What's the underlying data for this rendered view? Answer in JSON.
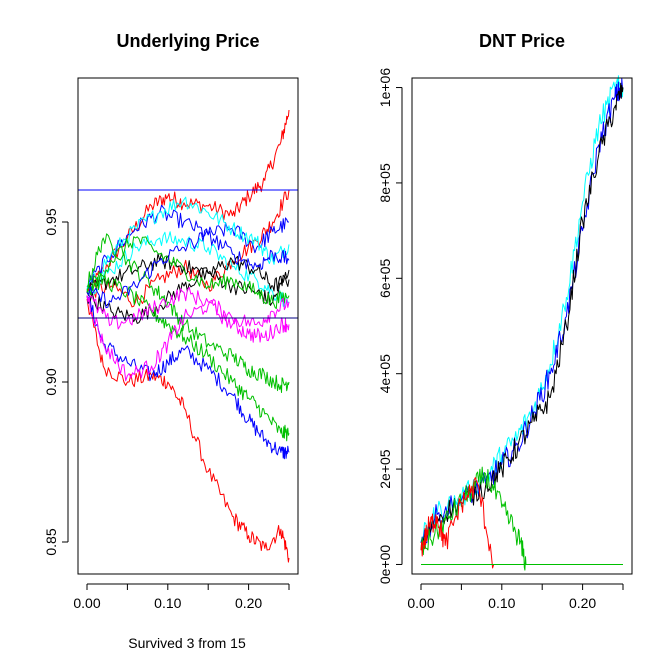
{
  "chart_data": [
    {
      "type": "line",
      "title": "Underlying Price",
      "xlabel": "Survived 3 from 15",
      "ylabel": "",
      "xlim": [
        0.0,
        0.25
      ],
      "ylim": [
        0.84,
        0.995
      ],
      "x_ticks": [
        0.0,
        0.1,
        0.2
      ],
      "x_tick_labels": [
        "0.00",
        "0.10",
        "0.20"
      ],
      "y_ticks": [
        0.85,
        0.9,
        0.95
      ],
      "y_tick_labels": [
        "0.85",
        "0.90",
        "0.95"
      ],
      "hlines": [
        {
          "y": 0.96,
          "color": "#0000ff"
        },
        {
          "y": 0.92,
          "color": "#000080"
        }
      ],
      "grid": false,
      "series": [
        {
          "color": "#ff0000",
          "x": [
            0.0,
            0.02,
            0.05,
            0.08,
            0.1,
            0.12,
            0.15,
            0.18,
            0.2,
            0.22,
            0.24,
            0.25
          ],
          "values": [
            0.928,
            0.935,
            0.945,
            0.955,
            0.958,
            0.956,
            0.955,
            0.952,
            0.958,
            0.963,
            0.975,
            0.985
          ]
        },
        {
          "color": "#ff0000",
          "x": [
            0.0,
            0.02,
            0.05,
            0.08,
            0.1,
            0.12,
            0.15,
            0.18,
            0.2,
            0.22,
            0.24,
            0.25
          ],
          "values": [
            0.926,
            0.905,
            0.9,
            0.902,
            0.9,
            0.892,
            0.872,
            0.858,
            0.852,
            0.848,
            0.854,
            0.845
          ]
        },
        {
          "color": "#ff0000",
          "x": [
            0.0,
            0.03,
            0.06,
            0.09,
            0.12,
            0.15,
            0.18,
            0.21,
            0.23,
            0.25
          ],
          "values": [
            0.928,
            0.93,
            0.925,
            0.932,
            0.936,
            0.93,
            0.938,
            0.944,
            0.95,
            0.96
          ]
        },
        {
          "color": "#0000ff",
          "x": [
            0.0,
            0.02,
            0.05,
            0.08,
            0.1,
            0.12,
            0.15,
            0.18,
            0.2,
            0.22,
            0.24,
            0.25
          ],
          "values": [
            0.927,
            0.912,
            0.906,
            0.902,
            0.906,
            0.91,
            0.904,
            0.896,
            0.888,
            0.882,
            0.878,
            0.878
          ]
        },
        {
          "color": "#0000ff",
          "x": [
            0.0,
            0.03,
            0.06,
            0.09,
            0.12,
            0.15,
            0.18,
            0.21,
            0.23,
            0.25
          ],
          "values": [
            0.93,
            0.94,
            0.948,
            0.953,
            0.95,
            0.946,
            0.948,
            0.942,
            0.947,
            0.95
          ]
        },
        {
          "color": "#00ffff",
          "x": [
            0.0,
            0.03,
            0.06,
            0.09,
            0.12,
            0.15,
            0.18,
            0.21,
            0.23,
            0.25
          ],
          "values": [
            0.929,
            0.94,
            0.948,
            0.953,
            0.957,
            0.953,
            0.948,
            0.944,
            0.938,
            0.943
          ]
        },
        {
          "color": "#00ffff",
          "x": [
            0.0,
            0.03,
            0.06,
            0.09,
            0.12,
            0.15,
            0.18,
            0.21,
            0.23,
            0.25
          ],
          "values": [
            0.928,
            0.935,
            0.942,
            0.945,
            0.944,
            0.942,
            0.936,
            0.932,
            0.928,
            0.925
          ]
        },
        {
          "color": "#000000",
          "x": [
            0.0,
            0.03,
            0.06,
            0.09,
            0.12,
            0.15,
            0.18,
            0.21,
            0.23,
            0.25
          ],
          "values": [
            0.928,
            0.932,
            0.935,
            0.938,
            0.936,
            0.934,
            0.93,
            0.928,
            0.925,
            0.935
          ]
        },
        {
          "color": "#000000",
          "x": [
            0.0,
            0.03,
            0.06,
            0.09,
            0.12,
            0.15,
            0.18,
            0.21,
            0.23,
            0.25
          ],
          "values": [
            0.927,
            0.922,
            0.92,
            0.924,
            0.93,
            0.934,
            0.938,
            0.935,
            0.93,
            0.932
          ]
        },
        {
          "color": "#00c000",
          "x": [
            0.0,
            0.02,
            0.05,
            0.08,
            0.1,
            0.12,
            0.15,
            0.18,
            0.2,
            0.22,
            0.24,
            0.25
          ],
          "values": [
            0.93,
            0.945,
            0.938,
            0.93,
            0.925,
            0.918,
            0.912,
            0.908,
            0.904,
            0.902,
            0.899,
            0.9
          ]
        },
        {
          "color": "#00c000",
          "x": [
            0.0,
            0.02,
            0.05,
            0.08,
            0.1,
            0.12,
            0.15,
            0.18,
            0.2,
            0.22,
            0.24,
            0.25
          ],
          "values": [
            0.929,
            0.932,
            0.928,
            0.922,
            0.918,
            0.914,
            0.908,
            0.9,
            0.895,
            0.89,
            0.884,
            0.884
          ]
        },
        {
          "color": "#00c000",
          "x": [
            0.0,
            0.03,
            0.06,
            0.09,
            0.12,
            0.15,
            0.18,
            0.21,
            0.23,
            0.25
          ],
          "values": [
            0.928,
            0.938,
            0.945,
            0.94,
            0.935,
            0.93,
            0.932,
            0.928,
            0.925,
            0.927
          ]
        },
        {
          "color": "#ff00ff",
          "x": [
            0.0,
            0.02,
            0.05,
            0.08,
            0.1,
            0.12,
            0.15,
            0.18,
            0.2,
            0.22,
            0.24,
            0.25
          ],
          "values": [
            0.927,
            0.912,
            0.902,
            0.905,
            0.912,
            0.92,
            0.924,
            0.918,
            0.915,
            0.914,
            0.918,
            0.918
          ]
        },
        {
          "color": "#ff00ff",
          "x": [
            0.0,
            0.03,
            0.06,
            0.09,
            0.12,
            0.15,
            0.18,
            0.21,
            0.23,
            0.25
          ],
          "values": [
            0.927,
            0.918,
            0.92,
            0.924,
            0.928,
            0.925,
            0.92,
            0.918,
            0.922,
            0.925
          ]
        },
        {
          "color": "#0000ff",
          "x": [
            0.0,
            0.03,
            0.06,
            0.09,
            0.12,
            0.15,
            0.18,
            0.21,
            0.23,
            0.25
          ],
          "values": [
            0.928,
            0.925,
            0.93,
            0.938,
            0.942,
            0.946,
            0.94,
            0.936,
            0.94,
            0.938
          ]
        }
      ]
    },
    {
      "type": "line",
      "title": "DNT Price",
      "xlabel": "",
      "ylabel": "",
      "xlim": [
        0.0,
        0.25
      ],
      "ylim": [
        -20000,
        1020000
      ],
      "x_ticks": [
        0.0,
        0.1,
        0.2
      ],
      "x_tick_labels": [
        "0.00",
        "0.10",
        "0.20"
      ],
      "y_ticks": [
        0,
        200000,
        400000,
        600000,
        800000,
        1000000
      ],
      "y_tick_labels": [
        "0e+00",
        "2e+05",
        "4e+05",
        "6e+05",
        "8e+05",
        "1e+06"
      ],
      "grid": false,
      "series": [
        {
          "color": "#00ffff",
          "x": [
            0.0,
            0.02,
            0.05,
            0.08,
            0.1,
            0.12,
            0.14,
            0.16,
            0.18,
            0.2,
            0.22,
            0.24,
            0.25
          ],
          "values": [
            50000,
            110000,
            140000,
            180000,
            230000,
            270000,
            330000,
            420000,
            560000,
            760000,
            920000,
            1000000,
            1000000
          ]
        },
        {
          "color": "#0000ff",
          "x": [
            0.0,
            0.02,
            0.05,
            0.08,
            0.1,
            0.12,
            0.14,
            0.16,
            0.18,
            0.2,
            0.22,
            0.24,
            0.25
          ],
          "values": [
            45000,
            105000,
            135000,
            170000,
            210000,
            250000,
            320000,
            400000,
            520000,
            700000,
            880000,
            980000,
            1000000
          ]
        },
        {
          "color": "#000000",
          "x": [
            0.0,
            0.02,
            0.05,
            0.08,
            0.1,
            0.12,
            0.14,
            0.16,
            0.18,
            0.2,
            0.22,
            0.24,
            0.25
          ],
          "values": [
            40000,
            100000,
            130000,
            165000,
            200000,
            250000,
            300000,
            350000,
            500000,
            720000,
            860000,
            960000,
            1000000
          ]
        },
        {
          "color": "#00c000",
          "x": [
            0.0,
            0.02,
            0.04,
            0.06,
            0.08,
            0.1,
            0.12,
            0.13
          ],
          "values": [
            30000,
            70000,
            110000,
            150000,
            190000,
            120000,
            60000,
            0
          ]
        },
        {
          "color": "#ff0000",
          "x": [
            0.0,
            0.01,
            0.02,
            0.03,
            0.05,
            0.07,
            0.09
          ],
          "values": [
            30000,
            80000,
            100000,
            40000,
            130000,
            170000,
            0
          ]
        },
        {
          "color": "#ff00ff",
          "x": [
            0.0,
            0.25
          ],
          "values": [
            0,
            0
          ]
        },
        {
          "color": "#00c000",
          "x": [
            0.0,
            0.25
          ],
          "values": [
            0,
            0
          ]
        }
      ]
    }
  ]
}
